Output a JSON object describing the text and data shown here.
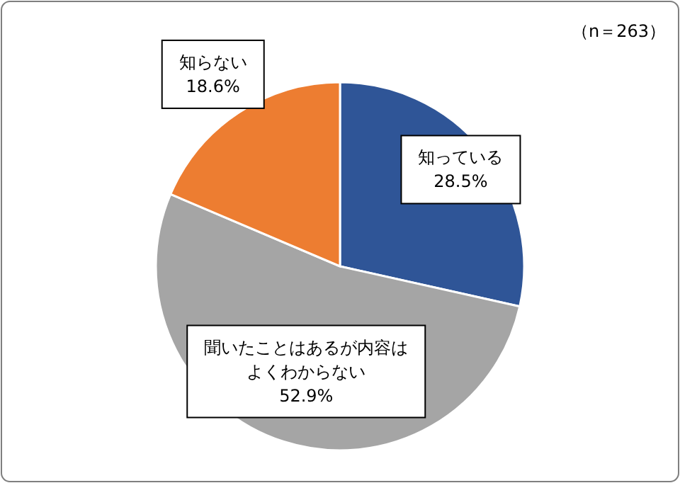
{
  "chart_data": {
    "type": "pie",
    "categories": [
      "知っている",
      "聞いたことはあるが内容はよくわからない",
      "知らない"
    ],
    "values": [
      28.5,
      52.9,
      18.6
    ],
    "colors": [
      "#2f5597",
      "#a5a5a5",
      "#ed7d31"
    ],
    "value_labels": [
      "28.5%",
      "52.9%",
      "18.6%"
    ],
    "annotations": [
      "（n＝263）"
    ]
  }
}
